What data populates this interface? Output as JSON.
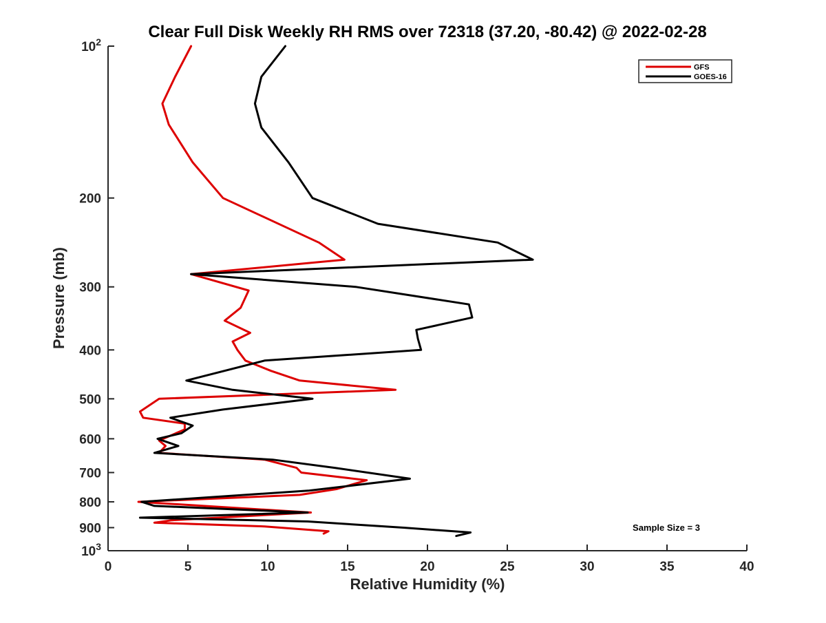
{
  "chart_data": {
    "type": "line",
    "title": "Clear Full Disk Weekly RH RMS over 72318 (37.20, -80.42) @ 2022-02-28",
    "xlabel": "Relative Humidity (%)",
    "ylabel": "Pressure (mb)",
    "xlim": [
      0,
      40
    ],
    "ylim": [
      100,
      1000
    ],
    "y_scale": "log",
    "y_reversed": true,
    "grid": false,
    "legend_position": "top-right",
    "x_ticks": [
      0,
      5,
      10,
      15,
      20,
      25,
      30,
      35,
      40
    ],
    "x_tick_labels": [
      "0",
      "5",
      "10",
      "15",
      "20",
      "25",
      "30",
      "35",
      "40"
    ],
    "y_ticks": [
      200,
      300,
      400,
      500,
      600,
      700,
      800,
      900
    ],
    "y_tick_labels": [
      "200",
      "300",
      "400",
      "500",
      "600",
      "700",
      "800",
      "900"
    ],
    "y_top_label": {
      "base": "10",
      "exp": "2"
    },
    "y_bottom_label": {
      "base": "10",
      "exp": "3"
    },
    "annotation": "Sample Size = 3",
    "series": [
      {
        "name": "GFS",
        "color": "#dd0000",
        "x": [
          5.2,
          4.2,
          3.4,
          3.8,
          5.3,
          7.2,
          13.2,
          14.8,
          5.2,
          8.8,
          8.3,
          7.3,
          8.9,
          7.8,
          8.1,
          8.6,
          10.2,
          12.0,
          18.0,
          3.2,
          2.0,
          2.2,
          4.8,
          4.8,
          3.2,
          3.6,
          3.2,
          9.8,
          11.8,
          12.1,
          16.2,
          14.3,
          12.0,
          1.9,
          12.7,
          4.0,
          2.9,
          9.8,
          13.8,
          13.5
        ],
        "y": [
          100,
          115,
          130,
          143,
          170,
          200,
          245,
          265,
          283,
          305,
          330,
          350,
          370,
          385,
          400,
          420,
          440,
          460,
          480,
          500,
          530,
          545,
          560,
          575,
          605,
          620,
          640,
          660,
          685,
          700,
          725,
          755,
          775,
          800,
          840,
          870,
          880,
          895,
          915,
          925
        ]
      },
      {
        "name": "GOES-16",
        "color": "#000000",
        "x": [
          11.1,
          9.6,
          9.2,
          9.6,
          11.3,
          12.8,
          16.9,
          24.4,
          26.6,
          5.2,
          15.5,
          22.6,
          22.8,
          19.3,
          19.4,
          19.6,
          9.8,
          4.9,
          7.8,
          12.8,
          7.2,
          3.9,
          5.3,
          4.6,
          3.1,
          4.4,
          2.9,
          10.3,
          14.2,
          18.9,
          12.6,
          2.1,
          2.9,
          12.5,
          2.0,
          12.5,
          18.5,
          22.7,
          21.8
        ],
        "y": [
          100,
          115,
          130,
          145,
          170,
          200,
          225,
          245,
          265,
          283,
          300,
          325,
          345,
          365,
          380,
          400,
          420,
          460,
          480,
          500,
          525,
          545,
          565,
          585,
          600,
          620,
          640,
          660,
          685,
          720,
          760,
          800,
          815,
          840,
          860,
          875,
          900,
          920,
          935
        ]
      }
    ]
  }
}
